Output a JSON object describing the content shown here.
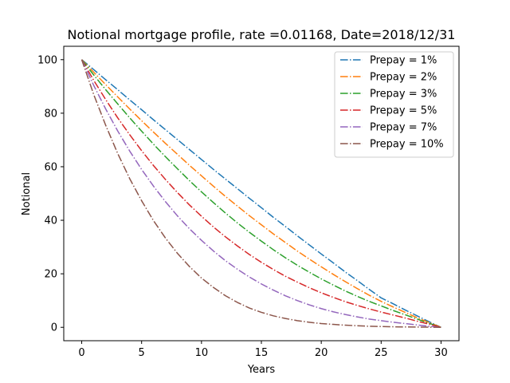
{
  "chart_data": {
    "type": "line",
    "title": "Notional mortgage profile, rate =0.01168, Date=2018/12/31",
    "xlabel": "Years",
    "ylabel": "Notional",
    "xlim": [
      -1.5,
      31.5
    ],
    "ylim": [
      -5,
      105
    ],
    "xticks": [
      0,
      5,
      10,
      15,
      20,
      25,
      30
    ],
    "yticks": [
      0,
      20,
      40,
      60,
      80,
      100
    ],
    "xtick_labels": [
      "0",
      "5",
      "10",
      "15",
      "20",
      "25",
      "30"
    ],
    "ytick_labels": [
      "0",
      "20",
      "40",
      "60",
      "80",
      "100"
    ],
    "grid": false,
    "legend_position": "top-right",
    "line_style": "dash-dot",
    "x": [
      0,
      1,
      2,
      3,
      4,
      5,
      6,
      7,
      8,
      9,
      10,
      11,
      12,
      13,
      14,
      15,
      16,
      17,
      18,
      19,
      20,
      21,
      22,
      23,
      24,
      25,
      26,
      27,
      28,
      29,
      30
    ],
    "series": [
      {
        "name": "Prepay = 1%",
        "color": "#1f77b4",
        "values": [
          100,
          96.3,
          92.5,
          88.8,
          85.0,
          81.3,
          77.5,
          73.8,
          70.1,
          66.4,
          62.7,
          59.0,
          55.4,
          51.8,
          48.2,
          44.7,
          41.1,
          37.7,
          34.2,
          30.8,
          27.4,
          24.1,
          20.7,
          17.5,
          14.2,
          11.0,
          8.8,
          6.5,
          4.3,
          2.1,
          0
        ]
      },
      {
        "name": "Prepay = 2%",
        "color": "#ff7f0e",
        "values": [
          100,
          95.3,
          90.7,
          86.1,
          81.6,
          77.2,
          72.9,
          68.7,
          64.6,
          60.5,
          56.6,
          52.7,
          48.9,
          45.3,
          41.7,
          38.3,
          34.9,
          31.7,
          28.5,
          25.5,
          22.6,
          19.8,
          17.1,
          14.5,
          12.0,
          9.7,
          7.6,
          5.6,
          3.6,
          1.8,
          0
        ]
      },
      {
        "name": "Prepay = 3%",
        "color": "#2ca02c",
        "values": [
          100,
          94.3,
          88.8,
          83.5,
          78.3,
          73.3,
          68.4,
          63.7,
          59.2,
          54.8,
          50.6,
          46.6,
          42.7,
          39.0,
          35.5,
          32.2,
          29.0,
          26.0,
          23.2,
          20.6,
          18.1,
          15.8,
          13.6,
          11.6,
          9.7,
          8.0,
          6.3,
          4.7,
          3.1,
          1.5,
          0
        ]
      },
      {
        "name": "Prepay = 5%",
        "color": "#d62728",
        "values": [
          100,
          92.3,
          85.1,
          78.3,
          72.0,
          66.0,
          60.4,
          55.2,
          50.3,
          45.7,
          41.5,
          37.5,
          33.8,
          30.4,
          27.2,
          24.3,
          21.6,
          19.1,
          16.9,
          14.8,
          12.9,
          11.2,
          9.6,
          8.2,
          6.9,
          5.7,
          4.6,
          3.5,
          2.3,
          1.2,
          0
        ]
      },
      {
        "name": "Prepay = 7%",
        "color": "#9467bd",
        "values": [
          100,
          90.4,
          81.6,
          73.4,
          65.9,
          59.0,
          52.7,
          46.9,
          41.6,
          36.8,
          32.5,
          28.5,
          24.9,
          21.7,
          18.8,
          16.2,
          13.9,
          11.8,
          10.0,
          8.4,
          7.0,
          5.8,
          4.8,
          3.9,
          3.1,
          2.5,
          1.9,
          1.4,
          0.9,
          0.4,
          0
        ]
      },
      {
        "name": "Prepay = 10%",
        "color": "#8c564b",
        "values": [
          100,
          87.0,
          75.5,
          65.0,
          55.6,
          47.3,
          39.8,
          33.3,
          27.6,
          22.7,
          18.4,
          14.9,
          11.8,
          9.3,
          7.2,
          5.6,
          4.3,
          3.3,
          2.5,
          1.9,
          1.4,
          1.1,
          0.8,
          0.6,
          0.4,
          0.3,
          0.2,
          0.15,
          0.1,
          0.05,
          0
        ]
      }
    ]
  }
}
